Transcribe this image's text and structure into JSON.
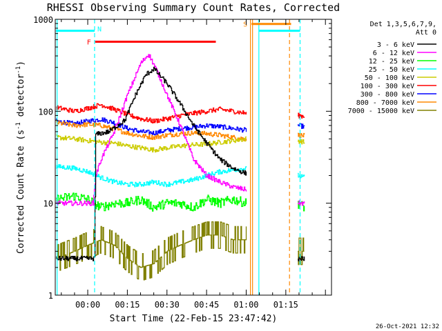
{
  "chart_data": {
    "type": "line",
    "title": "RHESSI Observing Summary Count Rates, Corrected",
    "xlabel": "Start Time (22-Feb-15 23:47:42)",
    "ylabel": "Corrected Count Rate (s⁻¹ detector⁻¹)",
    "ylabel_parts": [
      "Corrected Count Rate (s",
      "-1",
      " detector",
      "-1",
      ")"
    ],
    "date_stamp": "26-Oct-2021 12:32",
    "y_scale": "log",
    "ylim": [
      1,
      1000
    ],
    "xlim_minutes": [
      -12.3,
      92.3
    ],
    "x_ticks": [
      {
        "minutes": 0,
        "label": "00:00"
      },
      {
        "minutes": 15,
        "label": "00:15"
      },
      {
        "minutes": 30,
        "label": "00:30"
      },
      {
        "minutes": 45,
        "label": "00:45"
      },
      {
        "minutes": 60,
        "label": "01:00"
      },
      {
        "minutes": 75,
        "label": "01:15"
      }
    ],
    "y_ticks": [
      {
        "value": 1,
        "label": "1"
      },
      {
        "value": 10,
        "label": "10"
      },
      {
        "value": 100,
        "label": "100"
      },
      {
        "value": 1000,
        "label": "1000"
      }
    ],
    "legend": {
      "placement": "right",
      "header": [
        "Det 1,3,5,6,7,9,",
        "Att 0"
      ]
    },
    "gaps_minutes": [
      [
        60.0,
        79.5
      ]
    ],
    "series": [
      {
        "name": "3 - 6 keV",
        "color": "#000000",
        "x": [
          -12,
          -5,
          2.5,
          3,
          8,
          14,
          18,
          22,
          25,
          30,
          35,
          40,
          45,
          50,
          55,
          60,
          62.4,
          79.5,
          82
        ],
        "y": [
          2.5,
          2.5,
          2.5,
          56,
          60,
          80,
          150,
          250,
          290,
          200,
          120,
          70,
          45,
          30,
          24,
          21,
          20,
          2.5,
          2.5
        ]
      },
      {
        "name": "6 - 12 keV",
        "color": "#ff00ff",
        "x": [
          -12,
          -5,
          2,
          3,
          5,
          10,
          15,
          20,
          23,
          26,
          30,
          35,
          40,
          45,
          50,
          55,
          60,
          62.4,
          79.5,
          82
        ],
        "y": [
          10,
          10,
          10,
          20,
          30,
          60,
          150,
          330,
          420,
          280,
          150,
          70,
          30,
          20,
          17,
          15,
          14,
          13,
          10,
          10
        ]
      },
      {
        "name": "12 - 25 keV",
        "color": "#00ff00",
        "x": [
          -12,
          -5,
          0,
          5,
          10,
          15,
          20,
          25,
          30,
          35,
          40,
          45,
          50,
          55,
          60,
          62.4,
          79.5,
          82
        ],
        "y": [
          11,
          12,
          11,
          9,
          10,
          10,
          11,
          9,
          10,
          10,
          9,
          11,
          10,
          11,
          10,
          11,
          10,
          9
        ]
      },
      {
        "name": "25 - 50 keV",
        "color": "#00ffff",
        "x": [
          -12,
          -5,
          0,
          5,
          10,
          15,
          20,
          25,
          30,
          35,
          40,
          45,
          50,
          55,
          60,
          62.4,
          79.5,
          82
        ],
        "y": [
          25,
          24,
          22,
          19,
          17,
          16,
          16,
          17,
          16,
          17,
          18,
          20,
          22,
          23,
          24,
          25,
          20,
          19
        ]
      },
      {
        "name": "50 - 100 keV",
        "color": "#cccc00",
        "x": [
          -12,
          -5,
          0,
          5,
          10,
          15,
          20,
          25,
          30,
          35,
          40,
          45,
          50,
          55,
          60,
          62.4,
          79.5,
          82
        ],
        "y": [
          52,
          50,
          48,
          46,
          45,
          42,
          40,
          38,
          40,
          42,
          43,
          44,
          46,
          48,
          50,
          52,
          48,
          46
        ]
      },
      {
        "name": "100 - 300 keV",
        "color": "#ff0000",
        "x": [
          -12,
          -5,
          0,
          5,
          10,
          15,
          20,
          25,
          30,
          35,
          40,
          45,
          50,
          55,
          60,
          62.4,
          79.5,
          82
        ],
        "y": [
          110,
          100,
          108,
          118,
          105,
          92,
          83,
          78,
          83,
          90,
          95,
          100,
          105,
          100,
          95,
          95,
          90,
          88
        ]
      },
      {
        "name": "300 - 800 keV",
        "color": "#0000ff",
        "x": [
          -12,
          -5,
          0,
          5,
          10,
          15,
          20,
          25,
          30,
          35,
          40,
          45,
          50,
          55,
          60,
          62.4,
          79.5,
          82
        ],
        "y": [
          78,
          73,
          78,
          82,
          75,
          65,
          60,
          58,
          62,
          65,
          67,
          70,
          68,
          65,
          62,
          65,
          70,
          68
        ]
      },
      {
        "name": "800 - 7000 keV",
        "color": "#ff8800",
        "x": [
          -12,
          -5,
          0,
          5,
          10,
          15,
          20,
          25,
          30,
          35,
          40,
          45,
          50,
          55,
          60,
          62.4,
          79.5,
          82
        ],
        "y": [
          75,
          70,
          72,
          70,
          64,
          58,
          54,
          52,
          55,
          57,
          58,
          57,
          55,
          52,
          50,
          51,
          55,
          54
        ]
      },
      {
        "name": "7000 - 15000 keV",
        "color": "#808000",
        "x": [
          -12,
          -5,
          0,
          5,
          10,
          15,
          20,
          25,
          30,
          35,
          40,
          45,
          50,
          55,
          60,
          62.4,
          79.5,
          82
        ],
        "y": [
          2.5,
          3,
          3.5,
          4,
          3.5,
          2.5,
          2,
          2.2,
          3,
          3.5,
          4,
          4.5,
          4.5,
          4,
          4,
          4,
          3,
          3
        ]
      }
    ],
    "annotations": {
      "night": [
        {
          "label": "N",
          "color": "#00ffff",
          "x_minutes": [
            -12,
            2.6
          ],
          "y_value": 750,
          "marker_x_minutes": 2.6
        },
        {
          "label": "",
          "color": "#00ffff",
          "x_minutes": [
            64.8,
            80.4
          ],
          "y_value": 750,
          "marker_x_minutes": 80.4
        }
      ],
      "flare": {
        "label": "F",
        "color": "#ff0000",
        "x_minutes": [
          2.8,
          48.5
        ],
        "y_value": 570
      },
      "saa": {
        "label": "S",
        "color": "#ff8800",
        "x_minutes": [
          62.0,
          77.0
        ],
        "y_value": 890
      },
      "vertical_lines": [
        {
          "minutes": -11.6,
          "color": "#00ffff",
          "style": "solid"
        },
        {
          "minutes": 2.6,
          "color": "#00ffff",
          "style": "dashed"
        },
        {
          "minutes": 61.6,
          "color": "#ff8800",
          "style": "solid"
        },
        {
          "minutes": 62.4,
          "color": "#ff8800",
          "style": "solid"
        },
        {
          "minutes": 64.8,
          "color": "#00ffff",
          "style": "solid"
        },
        {
          "minutes": 76.4,
          "color": "#ff8800",
          "style": "dashed"
        },
        {
          "minutes": 80.4,
          "color": "#00ffff",
          "style": "dashed"
        }
      ]
    }
  }
}
